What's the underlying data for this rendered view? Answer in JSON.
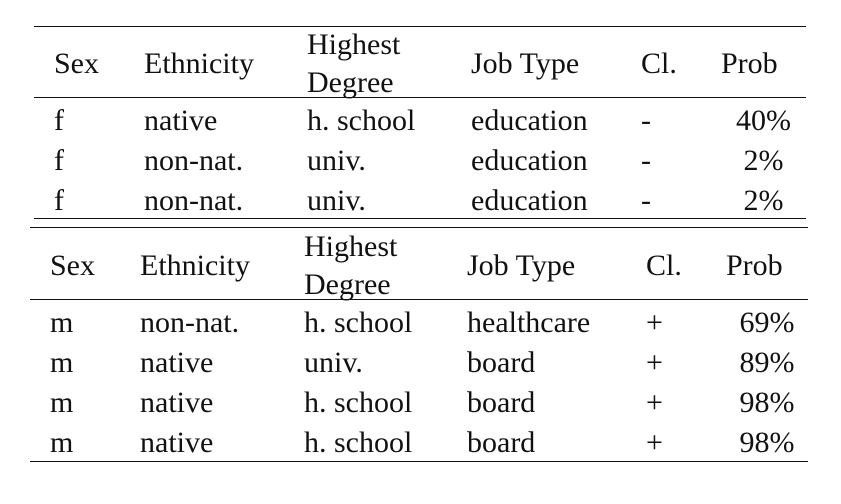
{
  "tables": [
    {
      "headers": [
        "Sex",
        "Ethnicity",
        "Highest\nDegree",
        "Job Type",
        "Cl.",
        "Prob"
      ],
      "header_degree_line1": "Highest",
      "header_degree_line2": "Degree",
      "rows": [
        [
          "f",
          "native",
          "h. school",
          "education",
          "-",
          "40%"
        ],
        [
          "f",
          "non-nat.",
          "univ.",
          "education",
          "-",
          "2%"
        ],
        [
          "f",
          "non-nat.",
          "univ.",
          "education",
          "-",
          "2%"
        ]
      ]
    },
    {
      "headers": [
        "Sex",
        "Ethnicity",
        "Highest\nDegree",
        "Job Type",
        "Cl.",
        "Prob"
      ],
      "header_degree_line1": "Highest",
      "header_degree_line2": "Degree",
      "rows": [
        [
          "m",
          "non-nat.",
          "h. school",
          "healthcare",
          "+",
          "69%"
        ],
        [
          "m",
          "native",
          "univ.",
          "board",
          "+",
          "89%"
        ],
        [
          "m",
          "native",
          "h. school",
          "board",
          "+",
          "98%"
        ],
        [
          "m",
          "native",
          "h. school",
          "board",
          "+",
          "98%"
        ]
      ]
    }
  ]
}
